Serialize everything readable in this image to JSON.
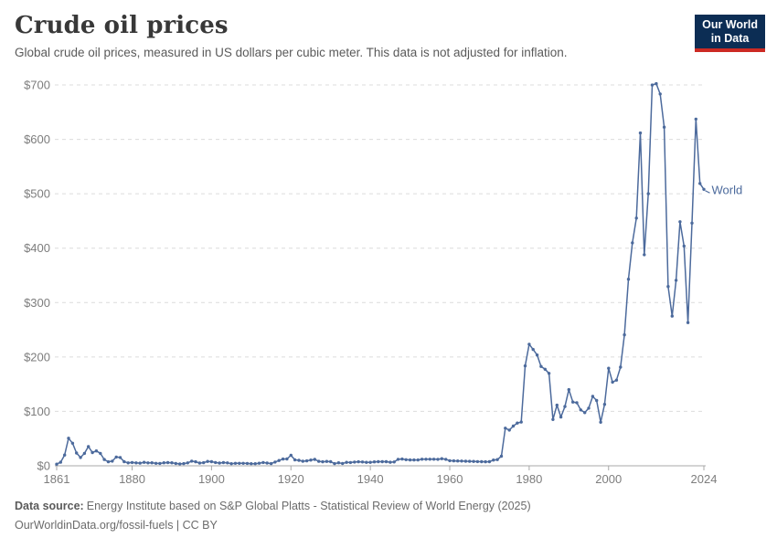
{
  "header": {
    "title": "Crude oil prices",
    "subtitle": "Global crude oil prices, measured in US dollars per cubic meter. This data is not adjusted for inflation.",
    "logo": {
      "line1": "Our World",
      "line2": "in Data"
    }
  },
  "chart_data": {
    "type": "line",
    "title": "Crude oil prices",
    "ylabel": "US dollars per cubic meter",
    "ylim": [
      0,
      700
    ],
    "y_ticks": [
      0,
      100,
      200,
      300,
      400,
      500,
      600,
      700
    ],
    "y_tick_prefix": "$",
    "x_ticks": [
      1861,
      1880,
      1900,
      1920,
      1940,
      1960,
      1980,
      2000,
      2024
    ],
    "x_start_year": 1861,
    "x_end_year": 2024,
    "grid": true,
    "legend_position": "end-of-line",
    "series": [
      {
        "name": "World",
        "color": "#4c6a9c",
        "values": [
          3.1,
          6.6,
          19.8,
          50.7,
          41.5,
          23.5,
          15.2,
          22.8,
          35.5,
          24.3,
          27.3,
          22.9,
          11.5,
          7.4,
          8.5,
          16.1,
          15.2,
          7.5,
          5.4,
          6.0,
          5.4,
          4.9,
          6.3,
          5.3,
          5.5,
          4.5,
          4.2,
          5.5,
          5.9,
          5.5,
          4.2,
          3.5,
          4.0,
          5.3,
          8.6,
          7.4,
          5.0,
          5.7,
          8.1,
          7.5,
          6.0,
          5.0,
          5.9,
          5.4,
          3.9,
          4.6,
          4.5,
          4.5,
          4.4,
          3.8,
          3.8,
          4.7,
          6.0,
          5.1,
          4.0,
          6.9,
          9.8,
          12.5,
          12.6,
          19.3,
          10.9,
          10.1,
          8.4,
          9.0,
          10.6,
          11.8,
          8.2,
          7.4,
          8.0,
          7.5,
          4.1,
          5.5,
          4.2,
          6.3,
          6.1,
          6.9,
          7.4,
          7.1,
          6.4,
          6.4,
          7.2,
          7.5,
          7.5,
          7.6,
          6.6,
          7.0,
          11.9,
          12.5,
          11.2,
          10.8,
          10.8,
          10.8,
          12.1,
          12.1,
          12.1,
          12.1,
          12.0,
          13.1,
          12.0,
          9.4,
          9.1,
          8.9,
          8.8,
          8.4,
          8.2,
          8.0,
          7.8,
          7.6,
          7.4,
          7.6,
          10.6,
          11.4,
          17.7,
          69.1,
          65.6,
          73.0,
          78.6,
          80.4,
          183.6,
          223.4,
          213.9,
          203.7,
          182.6,
          177.4,
          169.9,
          85.1,
          111.5,
          89.6,
          108.9,
          140.0,
          117.1,
          116.0,
          102.7,
          97.7,
          106.0,
          127.6,
          120.1,
          80.0,
          113.0,
          179.3,
          153.7,
          157.4,
          181.3,
          240.7,
          342.9,
          409.7,
          455.3,
          611.7,
          387.9,
          500.0,
          699.8,
          702.4,
          683.4,
          622.4,
          329.5,
          275.1,
          340.9,
          448.5,
          403.9,
          263.2,
          446.0,
          637.3,
          518.9,
          508.2
        ]
      }
    ]
  },
  "footer": {
    "data_source_label": "Data source:",
    "data_source_text": "Energy Institute based on S&P Global Platts - Statistical Review of World Energy (2025)",
    "line2": "OurWorldinData.org/fossil-fuels | CC BY"
  },
  "colors": {
    "line": "#4c6a9c",
    "grid": "#dcdcdc",
    "axis": "#a8a8a8",
    "tick_text": "#7d7d7d",
    "logo_bg": "#0c2d54",
    "logo_accent": "#cc2a23"
  }
}
